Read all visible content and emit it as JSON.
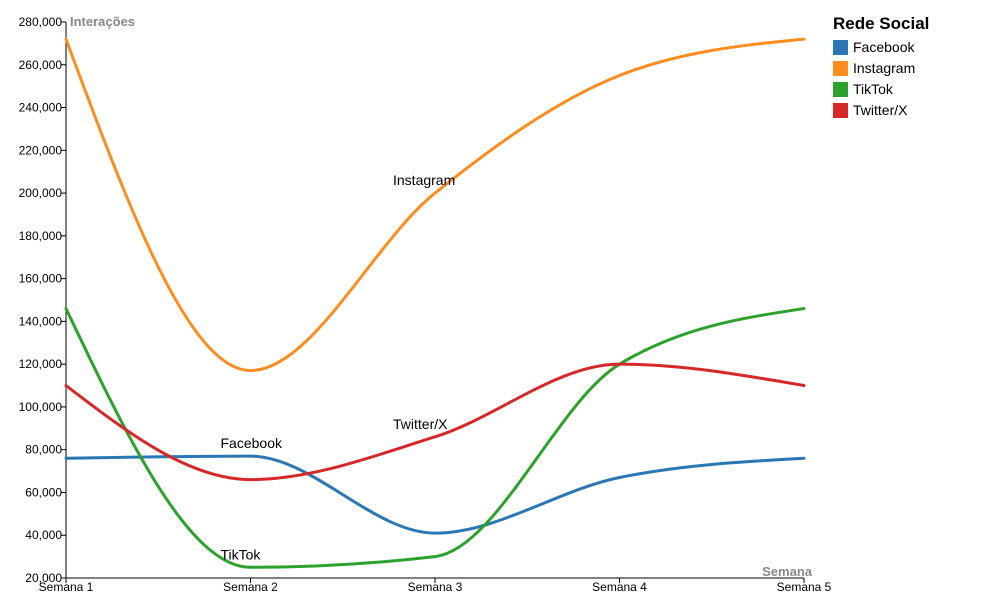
{
  "chart_data": {
    "type": "line",
    "x": [
      "Semana 1",
      "Semana 2",
      "Semana 3",
      "Semana 4",
      "Semana 5"
    ],
    "xlabel": "Semana",
    "ylabel": "Interações",
    "ylim": [
      20000,
      280000
    ],
    "yticks": [
      20000,
      40000,
      60000,
      80000,
      100000,
      120000,
      140000,
      160000,
      180000,
      200000,
      220000,
      240000,
      260000,
      280000
    ],
    "ytick_labels": [
      "20,000",
      "40,000",
      "60,000",
      "80,000",
      "100,000",
      "120,000",
      "140,000",
      "160,000",
      "180,000",
      "200,000",
      "220,000",
      "240,000",
      "260,000",
      "280,000"
    ],
    "grid": false,
    "curve": "smooth",
    "legend": {
      "title": "Rede Social",
      "placement": "top-right"
    },
    "series": [
      {
        "name": "Facebook",
        "color": "#2a77b4",
        "values": [
          76000,
          77000,
          41000,
          67000,
          76000
        ],
        "label": {
          "text": "Facebook",
          "at": 1
        }
      },
      {
        "name": "Instagram",
        "color": "#ff8c1f",
        "values": [
          272000,
          117000,
          200000,
          255000,
          272000
        ],
        "label": {
          "text": "Instagram",
          "at": 2
        }
      },
      {
        "name": "TikTok",
        "color": "#2ca12c",
        "values": [
          146000,
          25000,
          30000,
          120000,
          146000
        ],
        "label": {
          "text": "TikTok",
          "at": 1
        }
      },
      {
        "name": "Twitter/X",
        "color": "#d62828",
        "values": [
          110000,
          66000,
          86000,
          120000,
          110000
        ],
        "label": {
          "text": "Twitter/X",
          "at": 2
        }
      }
    ]
  }
}
